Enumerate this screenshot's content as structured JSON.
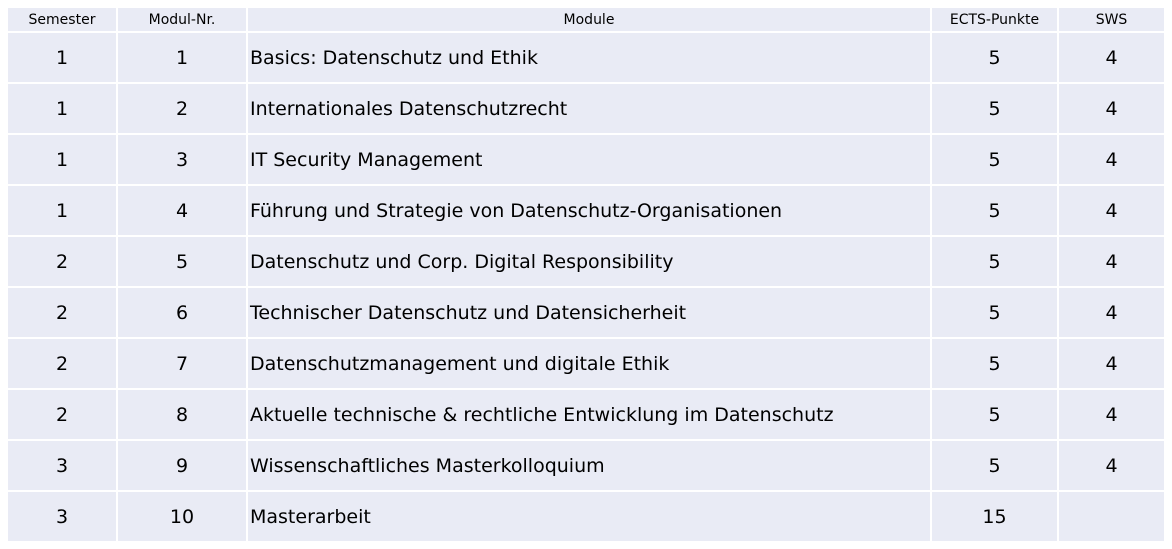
{
  "headers": [
    "Semester",
    "Modul-Nr.",
    "Module",
    "ECTS-Punkte",
    "SWS"
  ],
  "rows": [
    [
      "1",
      "1",
      "Basics: Datenschutz und Ethik",
      "5",
      "4"
    ],
    [
      "1",
      "2",
      "Internationales Datenschutzrecht",
      "5",
      "4"
    ],
    [
      "1",
      "3",
      "IT Security Management",
      "5",
      "4"
    ],
    [
      "1",
      "4",
      "Führung und Strategie von Datenschutz-Organisationen",
      "5",
      "4"
    ],
    [
      "2",
      "5",
      "Datenschutz und Corp. Digital Responsibility",
      "5",
      "4"
    ],
    [
      "2",
      "6",
      "Technischer Datenschutz und Datensicherheit",
      "5",
      "4"
    ],
    [
      "2",
      "7",
      "Datenschutzmanagement und digitale Ethik",
      "5",
      "4"
    ],
    [
      "2",
      "8",
      "Aktuelle technische & rechtliche Entwicklung im Datenschutz",
      "5",
      "4"
    ],
    [
      "3",
      "9",
      "Wissenschaftliches Masterkolloquium",
      "5",
      "4"
    ],
    [
      "3",
      "10",
      "Masterarbeit",
      "15",
      ""
    ]
  ],
  "colors": {
    "cell": "#e9ebf5",
    "border": "#ffffff"
  }
}
